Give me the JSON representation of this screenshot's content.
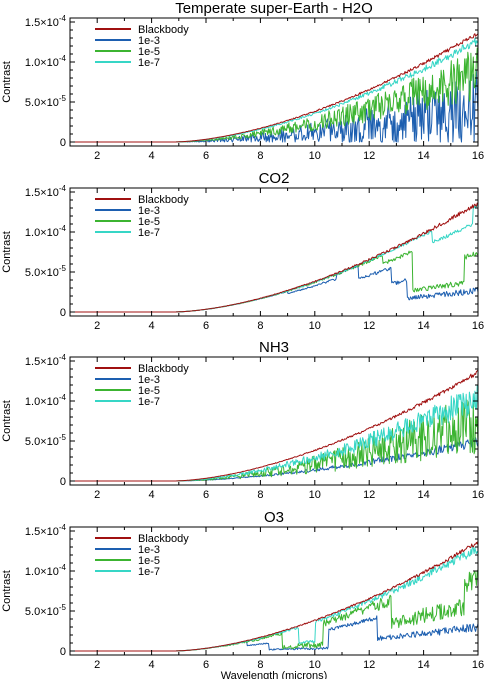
{
  "chart_data": [
    {
      "type": "line",
      "title": "Temperate super-Earth - H2O",
      "ylabel": "Contrast",
      "xlabel": "",
      "xlim": [
        1,
        16
      ],
      "ylim": [
        -5e-06,
        0.000155
      ],
      "xticks": [
        2,
        4,
        6,
        8,
        10,
        12,
        14,
        16
      ],
      "yticks": [
        0,
        5e-05,
        0.0001,
        0.00015
      ],
      "ytick_labels": [
        {
          "mantissa": "0",
          "exp": ""
        },
        {
          "mantissa": "5.0×10",
          "exp": "-5"
        },
        {
          "mantissa": "1.0×10",
          "exp": "-4"
        },
        {
          "mantissa": "1.5×10",
          "exp": "-4"
        }
      ],
      "legend": "top-left",
      "series": [
        {
          "name": "Blackbody",
          "color": "#a01010",
          "profile": "bb",
          "noise": 0.04,
          "features": []
        },
        {
          "name": "1e-3",
          "color": "#1d5fb0",
          "profile": "bbfrac",
          "noise": 0.35,
          "features": [
            {
              "x0": 1,
              "x1": 16,
              "level": 0.28,
              "bias": 0.45
            }
          ]
        },
        {
          "name": "1e-5",
          "color": "#3cb431",
          "profile": "bbfrac",
          "noise": 0.25,
          "features": [
            {
              "x0": 1,
              "x1": 16,
              "level": 0.65,
              "bias": 0.55
            }
          ]
        },
        {
          "name": "1e-7",
          "color": "#36d6c6",
          "profile": "bbfrac",
          "noise": 0.04,
          "features": [
            {
              "x0": 1,
              "x1": 16,
              "level": 0.97,
              "bias": 0.98
            }
          ]
        }
      ]
    },
    {
      "type": "line",
      "title": "CO2",
      "ylabel": "Contrast",
      "xlabel": "",
      "xlim": [
        1,
        16
      ],
      "ylim": [
        -5e-06,
        0.000155
      ],
      "xticks": [
        2,
        4,
        6,
        8,
        10,
        12,
        14,
        16
      ],
      "yticks": [
        0,
        5e-05,
        0.0001,
        0.00015
      ],
      "ytick_labels": [
        {
          "mantissa": "0",
          "exp": ""
        },
        {
          "mantissa": "5.0×10",
          "exp": "-5"
        },
        {
          "mantissa": "1.0×10",
          "exp": "-4"
        },
        {
          "mantissa": "1.5×10",
          "exp": "-4"
        }
      ],
      "legend": "top-left",
      "series": [
        {
          "name": "Blackbody",
          "color": "#a01010",
          "profile": "bb",
          "noise": 0.04,
          "features": []
        },
        {
          "name": "1e-3",
          "color": "#1d5fb0",
          "profile": "bbfrac",
          "noise": 0.03,
          "features": [
            {
              "x0": 9.0,
              "x1": 10.8,
              "level": 0.88,
              "bias": 0.9
            },
            {
              "x0": 11.6,
              "x1": 12.8,
              "level": 0.72,
              "bias": 0.8
            },
            {
              "x0": 12.8,
              "x1": 13.4,
              "level": 0.45,
              "bias": 0.5
            },
            {
              "x0": 13.4,
              "x1": 16.0,
              "level": 0.18,
              "bias": 0.2
            }
          ]
        },
        {
          "name": "1e-5",
          "color": "#3cb431",
          "profile": "bbfrac",
          "noise": 0.03,
          "features": [
            {
              "x0": 12.5,
              "x1": 13.6,
              "level": 0.85,
              "bias": 0.88
            },
            {
              "x0": 13.6,
              "x1": 15.5,
              "level": 0.28,
              "bias": 0.32
            },
            {
              "x0": 15.5,
              "x1": 16.0,
              "level": 0.55,
              "bias": 0.6
            }
          ]
        },
        {
          "name": "1e-7",
          "color": "#36d6c6",
          "profile": "bbfrac",
          "noise": 0.02,
          "features": [
            {
              "x0": 14.3,
              "x1": 15.8,
              "level": 0.85,
              "bias": 0.87
            }
          ]
        }
      ]
    },
    {
      "type": "line",
      "title": "NH3",
      "ylabel": "Contrast",
      "xlabel": "",
      "xlim": [
        1,
        16
      ],
      "ylim": [
        -5e-06,
        0.000155
      ],
      "xticks": [
        2,
        4,
        6,
        8,
        10,
        12,
        14,
        16
      ],
      "yticks": [
        0,
        5e-05,
        0.0001,
        0.00015
      ],
      "ytick_labels": [
        {
          "mantissa": "0",
          "exp": ""
        },
        {
          "mantissa": "5.0×10",
          "exp": "-5"
        },
        {
          "mantissa": "1.0×10",
          "exp": "-4"
        },
        {
          "mantissa": "1.5×10",
          "exp": "-4"
        }
      ],
      "legend": "top-left",
      "series": [
        {
          "name": "Blackbody",
          "color": "#a01010",
          "profile": "bb",
          "noise": 0.04,
          "features": []
        },
        {
          "name": "1e-3",
          "color": "#1d5fb0",
          "profile": "bbfrac",
          "noise": 0.05,
          "features": [
            {
              "x0": 1,
              "x1": 16,
              "level": 0.35,
              "bias": 0.4
            }
          ]
        },
        {
          "name": "1e-5",
          "color": "#3cb431",
          "profile": "bbfrac",
          "noise": 0.3,
          "features": [
            {
              "x0": 1,
              "x1": 16,
              "level": 0.55,
              "bias": 0.5
            }
          ]
        },
        {
          "name": "1e-7",
          "color": "#36d6c6",
          "profile": "bbfrac",
          "noise": 0.15,
          "features": [
            {
              "x0": 1,
              "x1": 16,
              "level": 0.85,
              "bias": 0.8
            }
          ]
        }
      ]
    },
    {
      "type": "line",
      "title": "O3",
      "ylabel": "Contrast",
      "xlabel": "Wavelength (microns)",
      "xlim": [
        1,
        16
      ],
      "ylim": [
        -5e-06,
        0.000155
      ],
      "xticks": [
        2,
        4,
        6,
        8,
        10,
        12,
        14,
        16
      ],
      "yticks": [
        0,
        5e-05,
        0.0001,
        0.00015
      ],
      "ytick_labels": [
        {
          "mantissa": "0",
          "exp": ""
        },
        {
          "mantissa": "5.0×10",
          "exp": "-5"
        },
        {
          "mantissa": "1.0×10",
          "exp": "-4"
        },
        {
          "mantissa": "1.5×10",
          "exp": "-4"
        }
      ],
      "legend": "top-left",
      "series": [
        {
          "name": "Blackbody",
          "color": "#a01010",
          "profile": "bb",
          "noise": 0.04,
          "features": []
        },
        {
          "name": "1e-3",
          "color": "#1d5fb0",
          "profile": "bbfrac",
          "noise": 0.04,
          "features": [
            {
              "x0": 7.5,
              "x1": 8.3,
              "level": 0.5,
              "bias": 0.5
            },
            {
              "x0": 8.3,
              "x1": 10.5,
              "level": 0.05,
              "bias": 0.05
            },
            {
              "x0": 10.5,
              "x1": 12.3,
              "level": 0.6,
              "bias": 0.6
            },
            {
              "x0": 12.3,
              "x1": 16.0,
              "level": 0.2,
              "bias": 0.22
            }
          ]
        },
        {
          "name": "1e-5",
          "color": "#3cb431",
          "profile": "bbfrac",
          "noise": 0.1,
          "features": [
            {
              "x0": 8.8,
              "x1": 10.3,
              "level": 0.12,
              "bias": 0.12
            },
            {
              "x0": 10.3,
              "x1": 12.8,
              "level": 0.9,
              "bias": 0.9
            },
            {
              "x0": 12.8,
              "x1": 15.5,
              "level": 0.45,
              "bias": 0.5
            },
            {
              "x0": 15.5,
              "x1": 16.0,
              "level": 0.7,
              "bias": 0.7
            }
          ]
        },
        {
          "name": "1e-7",
          "color": "#36d6c6",
          "profile": "bbfrac",
          "noise": 0.05,
          "features": [
            {
              "x0": 9.4,
              "x1": 10.0,
              "level": 0.3,
              "bias": 0.3
            }
          ]
        }
      ]
    }
  ]
}
